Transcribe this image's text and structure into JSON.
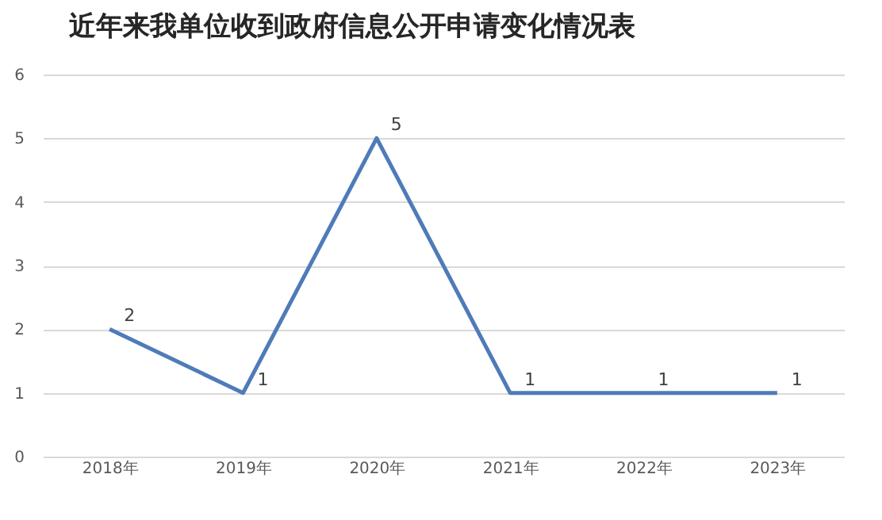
{
  "chart_data": {
    "type": "line",
    "title": "近年来我单位收到政府信息公开申请变化情况表",
    "categories": [
      "2018年",
      "2019年",
      "2020年",
      "2021年",
      "2022年",
      "2023年"
    ],
    "series": [
      {
        "color": "#4f7bb8",
        "values": [
          2,
          1,
          5,
          1,
          1,
          1
        ]
      }
    ],
    "ylim": [
      0,
      6
    ],
    "yticks": [
      0,
      1,
      2,
      3,
      4,
      5,
      6
    ],
    "grid": "y",
    "data_labels": true,
    "marker": "none",
    "line_style": "solid"
  }
}
